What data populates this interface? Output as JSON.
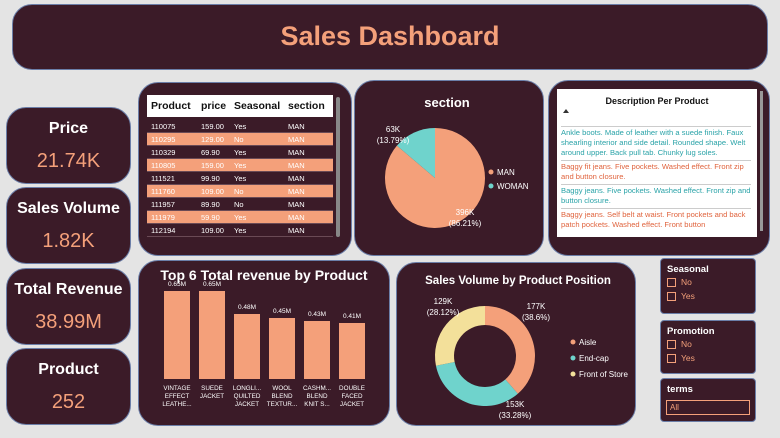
{
  "header": {
    "title": "Sales Dashboard"
  },
  "kpis": [
    {
      "label": "Price",
      "value": "21.74K"
    },
    {
      "label": "Sales Volume",
      "value": "1.82K"
    },
    {
      "label": "Total Revenue",
      "value": "38.99M"
    },
    {
      "label": "Product",
      "value": "252"
    }
  ],
  "table": {
    "columns": [
      "Product",
      "price",
      "Seasonal",
      "section"
    ],
    "rows": [
      [
        "110075",
        "159.00",
        "Yes",
        "MAN"
      ],
      [
        "110295",
        "129.00",
        "No",
        "MAN"
      ],
      [
        "110329",
        "69.90",
        "Yes",
        "MAN"
      ],
      [
        "110805",
        "159.00",
        "Yes",
        "MAN"
      ],
      [
        "111521",
        "99.90",
        "Yes",
        "MAN"
      ],
      [
        "111760",
        "109.00",
        "No",
        "MAN"
      ],
      [
        "111957",
        "89.90",
        "No",
        "MAN"
      ],
      [
        "111979",
        "59.90",
        "Yes",
        "MAN"
      ],
      [
        "112194",
        "109.00",
        "Yes",
        "MAN"
      ]
    ]
  },
  "description": {
    "title": "Description Per Product",
    "items": [
      "Ankle boots. Made of leather with a suede finish. Faux shearling interior and side detail. Rounded shape. Welt around upper. Back pull tab. Chunky lug soles.",
      "Baggy fit jeans. Five pockets. Washed effect. Front zip and button closure.",
      "Baggy jeans. Five pockets. Washed effect. Front zip and button closure.",
      "Baggy jeans. Self belt at waist. Front pockets and back patch pockets. Washed effect. Front button"
    ]
  },
  "slicers": [
    {
      "title": "Seasonal",
      "options": [
        "No",
        "Yes"
      ]
    },
    {
      "title": "Promotion",
      "options": [
        "No",
        "Yes"
      ]
    },
    {
      "title": "terms",
      "selected": "All"
    }
  ],
  "chart_data": [
    {
      "type": "pie",
      "title": "section",
      "categories": [
        "MAN",
        "WOMAN"
      ],
      "values": [
        396,
        63
      ],
      "value_labels": [
        "396K",
        "63K"
      ],
      "percents": [
        86.21,
        13.79
      ],
      "percent_labels": [
        "(86.21%)",
        "(13.79%)"
      ],
      "colors": [
        "#f4a07a",
        "#6fd3cc"
      ]
    },
    {
      "type": "bar",
      "title": "Top 6 Total revenue by Product",
      "categories": [
        "VINTAGE EFFECT LEATHE...",
        "SUEDE JACKET",
        "LONGLI... QUILTED JACKET",
        "WOOL BLEND TEXTUR...",
        "CASHM... BLEND KNIT S...",
        "DOUBLE FACED JACKET"
      ],
      "values": [
        0.65,
        0.65,
        0.48,
        0.45,
        0.43,
        0.41
      ],
      "value_labels": [
        "0.65M",
        "0.65M",
        "0.48M",
        "0.45M",
        "0.43M",
        "0.41M"
      ],
      "color": "#f4a07a"
    },
    {
      "type": "donut",
      "title": "Sales Volume by Product Position",
      "categories": [
        "Aisle",
        "End-cap",
        "Front of Store"
      ],
      "values": [
        177,
        153,
        129
      ],
      "value_labels": [
        "177K",
        "153K",
        "129K"
      ],
      "percents": [
        38.6,
        33.28,
        28.12
      ],
      "percent_labels": [
        "(38.6%)",
        "(33.28%)",
        "(28.12%)"
      ],
      "colors": [
        "#f4a07a",
        "#6fd3cc",
        "#f3e09a"
      ]
    }
  ]
}
